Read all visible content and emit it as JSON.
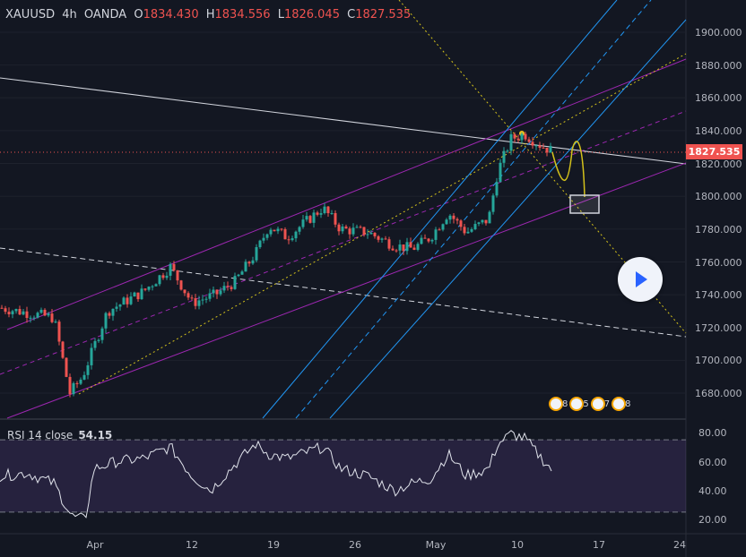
{
  "header": {
    "symbol": "XAUUSD",
    "interval": "4h",
    "source": "OANDA",
    "open_label": "O",
    "open": "1834.430",
    "high_label": "H",
    "high": "1834.556",
    "low_label": "L",
    "low": "1826.045",
    "close_label": "C",
    "close": "1827.535"
  },
  "rsi": {
    "label": "RSI 14 close",
    "value": "54.15",
    "ticks": [
      "80.00",
      "60.00",
      "40.00",
      "20.00"
    ]
  },
  "price_axis": {
    "ticks": [
      "1900.000",
      "1880.000",
      "1860.000",
      "1840.000",
      "1820.000",
      "1800.000",
      "1780.000",
      "1760.000",
      "1740.000",
      "1720.000",
      "1700.000",
      "1680.000"
    ],
    "last_price": "1827.535"
  },
  "time_axis": {
    "ticks": [
      "Apr",
      "12",
      "19",
      "26",
      "May",
      "10",
      "17",
      "24"
    ]
  },
  "events": {
    "counts": [
      "8",
      "5",
      "7",
      "8"
    ]
  },
  "colors": {
    "up": "#26a69a",
    "down": "#ef5350",
    "channel": "#9c27b0",
    "blue_lines": "#2196f3",
    "fib_dotted": "#d4c21b",
    "rsi_fill": "#7e57c2"
  },
  "chart_data": {
    "type": "candlestick",
    "symbol": "XAUUSD",
    "interval": "4h",
    "x": [
      "Apr",
      "12",
      "19",
      "26",
      "May",
      "10",
      "17",
      "24"
    ],
    "ylim": [
      1665,
      1910
    ],
    "close_path": [
      {
        "x": "Mar 29",
        "y": 1732
      },
      {
        "x": "Mar 31",
        "y": 1726
      },
      {
        "x": "Apr 1",
        "y": 1680
      },
      {
        "x": "Apr 2",
        "y": 1690
      },
      {
        "x": "Apr 4",
        "y": 1730
      },
      {
        "x": "Apr 6",
        "y": 1742
      },
      {
        "x": "Apr 8",
        "y": 1745
      },
      {
        "x": "Apr 9",
        "y": 1755
      },
      {
        "x": "Apr 12",
        "y": 1735
      },
      {
        "x": "Apr 14",
        "y": 1738
      },
      {
        "x": "Apr 16",
        "y": 1765
      },
      {
        "x": "Apr 18",
        "y": 1776
      },
      {
        "x": "Apr 20",
        "y": 1785
      },
      {
        "x": "Apr 22",
        "y": 1793
      },
      {
        "x": "Apr 23",
        "y": 1780
      },
      {
        "x": "Apr 26",
        "y": 1780
      },
      {
        "x": "Apr 28",
        "y": 1775
      },
      {
        "x": "Apr 30",
        "y": 1768
      },
      {
        "x": "May 2",
        "y": 1775
      },
      {
        "x": "May 3",
        "y": 1790
      },
      {
        "x": "May 5",
        "y": 1780
      },
      {
        "x": "May 6",
        "y": 1786
      },
      {
        "x": "May 7",
        "y": 1815
      },
      {
        "x": "May 9",
        "y": 1835
      },
      {
        "x": "May 10",
        "y": 1838
      },
      {
        "x": "May 11",
        "y": 1832
      },
      {
        "x": "May 12",
        "y": 1827.5
      }
    ],
    "projection": [
      {
        "x": "May 12",
        "y": 1827.5
      },
      {
        "x": "May 13",
        "y": 1808
      },
      {
        "x": "May 14",
        "y": 1827
      },
      {
        "x": "May 15",
        "y": 1798
      }
    ],
    "rsi_series": {
      "name": "RSI 14 close",
      "last": 54.15,
      "overbought": 75,
      "oversold": 25
    }
  }
}
